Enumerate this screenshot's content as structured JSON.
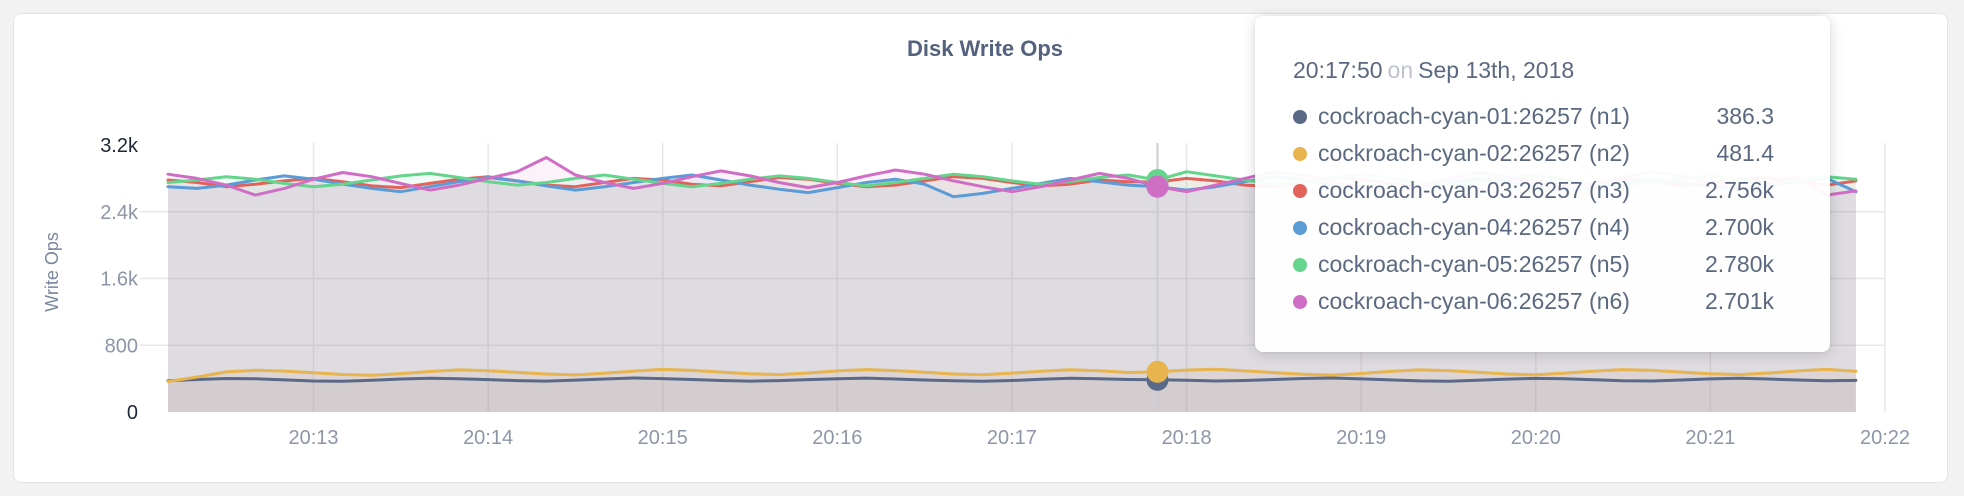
{
  "page": {
    "background_color": "#f2f2f3"
  },
  "card": {
    "title": "Disk Write Ops",
    "title_color": "#54627e",
    "background_color": "#ffffff",
    "border_color": "#e4e4e6"
  },
  "tooltip": {
    "time": "20:17:50",
    "separator": "on",
    "date": "Sep 13th, 2018",
    "rows": [
      {
        "name": "cockroach-cyan-01:26257 (n1)",
        "value": "386.3",
        "value_num": 386.3,
        "color": "#5a6987"
      },
      {
        "name": "cockroach-cyan-02:26257 (n2)",
        "value": "481.4",
        "value_num": 481.4,
        "color": "#e7b44e"
      },
      {
        "name": "cockroach-cyan-03:26257 (n3)",
        "value": "2.756k",
        "value_num": 2756,
        "color": "#e2635c"
      },
      {
        "name": "cockroach-cyan-04:26257 (n4)",
        "value": "2.700k",
        "value_num": 2700,
        "color": "#5b9cd6"
      },
      {
        "name": "cockroach-cyan-05:26257 (n5)",
        "value": "2.780k",
        "value_num": 2780,
        "color": "#65d48c"
      },
      {
        "name": "cockroach-cyan-06:26257 (n6)",
        "value": "2.701k",
        "value_num": 2701,
        "color": "#cf6ec4"
      }
    ]
  },
  "chart_data": {
    "type": "line",
    "title": "Disk Write Ops",
    "xlabel": "",
    "ylabel": "Write Ops",
    "ylim": [
      0,
      3200
    ],
    "grid": true,
    "legend_position": "tooltip",
    "x_start": "20:12:10",
    "x_end": "20:21:50",
    "x_interval_sec": 10,
    "y_ticks": [
      {
        "value": 0,
        "label": "0",
        "emphasis": true
      },
      {
        "value": 800,
        "label": "800"
      },
      {
        "value": 1600,
        "label": "1.6k"
      },
      {
        "value": 2400,
        "label": "2.4k"
      },
      {
        "value": 3200,
        "label": "3.2k",
        "emphasis": true
      }
    ],
    "x_ticks": [
      {
        "t": 50,
        "label": "20:13"
      },
      {
        "t": 110,
        "label": "20:14"
      },
      {
        "t": 170,
        "label": "20:15"
      },
      {
        "t": 230,
        "label": "20:16"
      },
      {
        "t": 290,
        "label": "20:17"
      },
      {
        "t": 350,
        "label": "20:18"
      },
      {
        "t": 410,
        "label": "20:19"
      },
      {
        "t": 470,
        "label": "20:20"
      },
      {
        "t": 530,
        "label": "20:21"
      },
      {
        "t": 590,
        "label": "20:22"
      }
    ],
    "hover": {
      "t_offset_sec": 340,
      "time": "20:17:50",
      "date": "Sep 13th, 2018"
    },
    "colors": {
      "grid": "#e8e8ea",
      "hover_line": "#c9ccd0",
      "tick": "#8d96a9",
      "tick_emphasis": "#1e2736",
      "axis_title": "#7b879d"
    },
    "series": [
      {
        "name": "cockroach-cyan-01:26257 (n1)",
        "color": "#5a6987",
        "values": [
          375,
          390,
          402,
          398,
          385,
          372,
          368,
          380,
          395,
          405,
          398,
          388,
          376,
          370,
          382,
          396,
          408,
          400,
          390,
          378,
          370,
          376,
          388,
          398,
          406,
          396,
          384,
          374,
          368,
          378,
          392,
          404,
          399,
          389,
          386.3,
          380,
          372,
          378,
          390,
          401,
          407,
          397,
          385,
          373,
          369,
          381,
          394,
          403,
          398,
          387,
          375,
          371,
          383,
          397,
          405,
          395,
          383,
          374,
          379
        ]
      },
      {
        "name": "cockroach-cyan-02:26257 (n2)",
        "color": "#e7b44e",
        "values": [
          365,
          420,
          480,
          500,
          490,
          470,
          450,
          440,
          460,
          485,
          505,
          495,
          475,
          455,
          445,
          465,
          490,
          510,
          498,
          478,
          458,
          448,
          468,
          492,
          508,
          496,
          476,
          456,
          446,
          466,
          488,
          506,
          494,
          474,
          481.4,
          502,
          512,
          492,
          472,
          452,
          442,
          462,
          486,
          504,
          496,
          476,
          456,
          446,
          466,
          490,
          508,
          498,
          478,
          458,
          448,
          468,
          492,
          510,
          488
        ]
      },
      {
        "name": "cockroach-cyan-03:26257 (n3)",
        "color": "#e2635c",
        "values": [
          2780,
          2750,
          2700,
          2730,
          2770,
          2800,
          2760,
          2710,
          2690,
          2740,
          2790,
          2820,
          2770,
          2720,
          2700,
          2750,
          2800,
          2780,
          2730,
          2710,
          2760,
          2810,
          2790,
          2740,
          2700,
          2720,
          2770,
          2820,
          2800,
          2750,
          2710,
          2730,
          2780,
          2760,
          2756,
          2800,
          2770,
          2720,
          2700,
          2750,
          2810,
          2790,
          2740,
          2700,
          2730,
          2780,
          2820,
          2770,
          2720,
          2750,
          2800,
          2760,
          2710,
          2740,
          2790,
          2810,
          2760,
          2720,
          2770
        ]
      },
      {
        "name": "cockroach-cyan-04:26257 (n4)",
        "color": "#5b9cd6",
        "values": [
          2700,
          2680,
          2720,
          2780,
          2830,
          2790,
          2730,
          2680,
          2640,
          2700,
          2760,
          2810,
          2770,
          2710,
          2660,
          2700,
          2750,
          2800,
          2840,
          2780,
          2720,
          2670,
          2630,
          2690,
          2750,
          2790,
          2730,
          2580,
          2620,
          2680,
          2740,
          2800,
          2760,
          2720,
          2700,
          2660,
          2700,
          2760,
          2820,
          2780,
          2720,
          2680,
          2640,
          2700,
          2750,
          2800,
          2760,
          2700,
          2650,
          2690,
          2740,
          2790,
          2750,
          2700,
          2660,
          2710,
          2760,
          2800,
          2640
        ]
      },
      {
        "name": "cockroach-cyan-05:26257 (n5)",
        "color": "#65d48c",
        "values": [
          2750,
          2780,
          2820,
          2790,
          2740,
          2700,
          2730,
          2780,
          2830,
          2860,
          2810,
          2760,
          2720,
          2750,
          2800,
          2840,
          2790,
          2740,
          2700,
          2740,
          2790,
          2830,
          2800,
          2750,
          2710,
          2750,
          2800,
          2850,
          2820,
          2770,
          2730,
          2760,
          2810,
          2840,
          2780,
          2880,
          2830,
          2780,
          2730,
          2760,
          2810,
          2850,
          2800,
          2750,
          2720,
          2760,
          2810,
          2840,
          2790,
          2740,
          2710,
          2750,
          2800,
          2830,
          2780,
          2740,
          2770,
          2820,
          2790
        ]
      },
      {
        "name": "cockroach-cyan-06:26257 (n6)",
        "color": "#cf6ec4",
        "values": [
          2850,
          2800,
          2720,
          2600,
          2680,
          2790,
          2870,
          2820,
          2740,
          2660,
          2720,
          2800,
          2880,
          3050,
          2840,
          2750,
          2680,
          2740,
          2820,
          2890,
          2830,
          2750,
          2690,
          2750,
          2830,
          2900,
          2850,
          2770,
          2700,
          2640,
          2700,
          2780,
          2860,
          2800,
          2701,
          2640,
          2720,
          2800,
          2880,
          2840,
          2760,
          2690,
          2640,
          2710,
          2790,
          2870,
          2820,
          2740,
          2670,
          2730,
          2810,
          2880,
          2830,
          2750,
          2680,
          2740,
          2820,
          2600,
          2650
        ]
      }
    ]
  }
}
